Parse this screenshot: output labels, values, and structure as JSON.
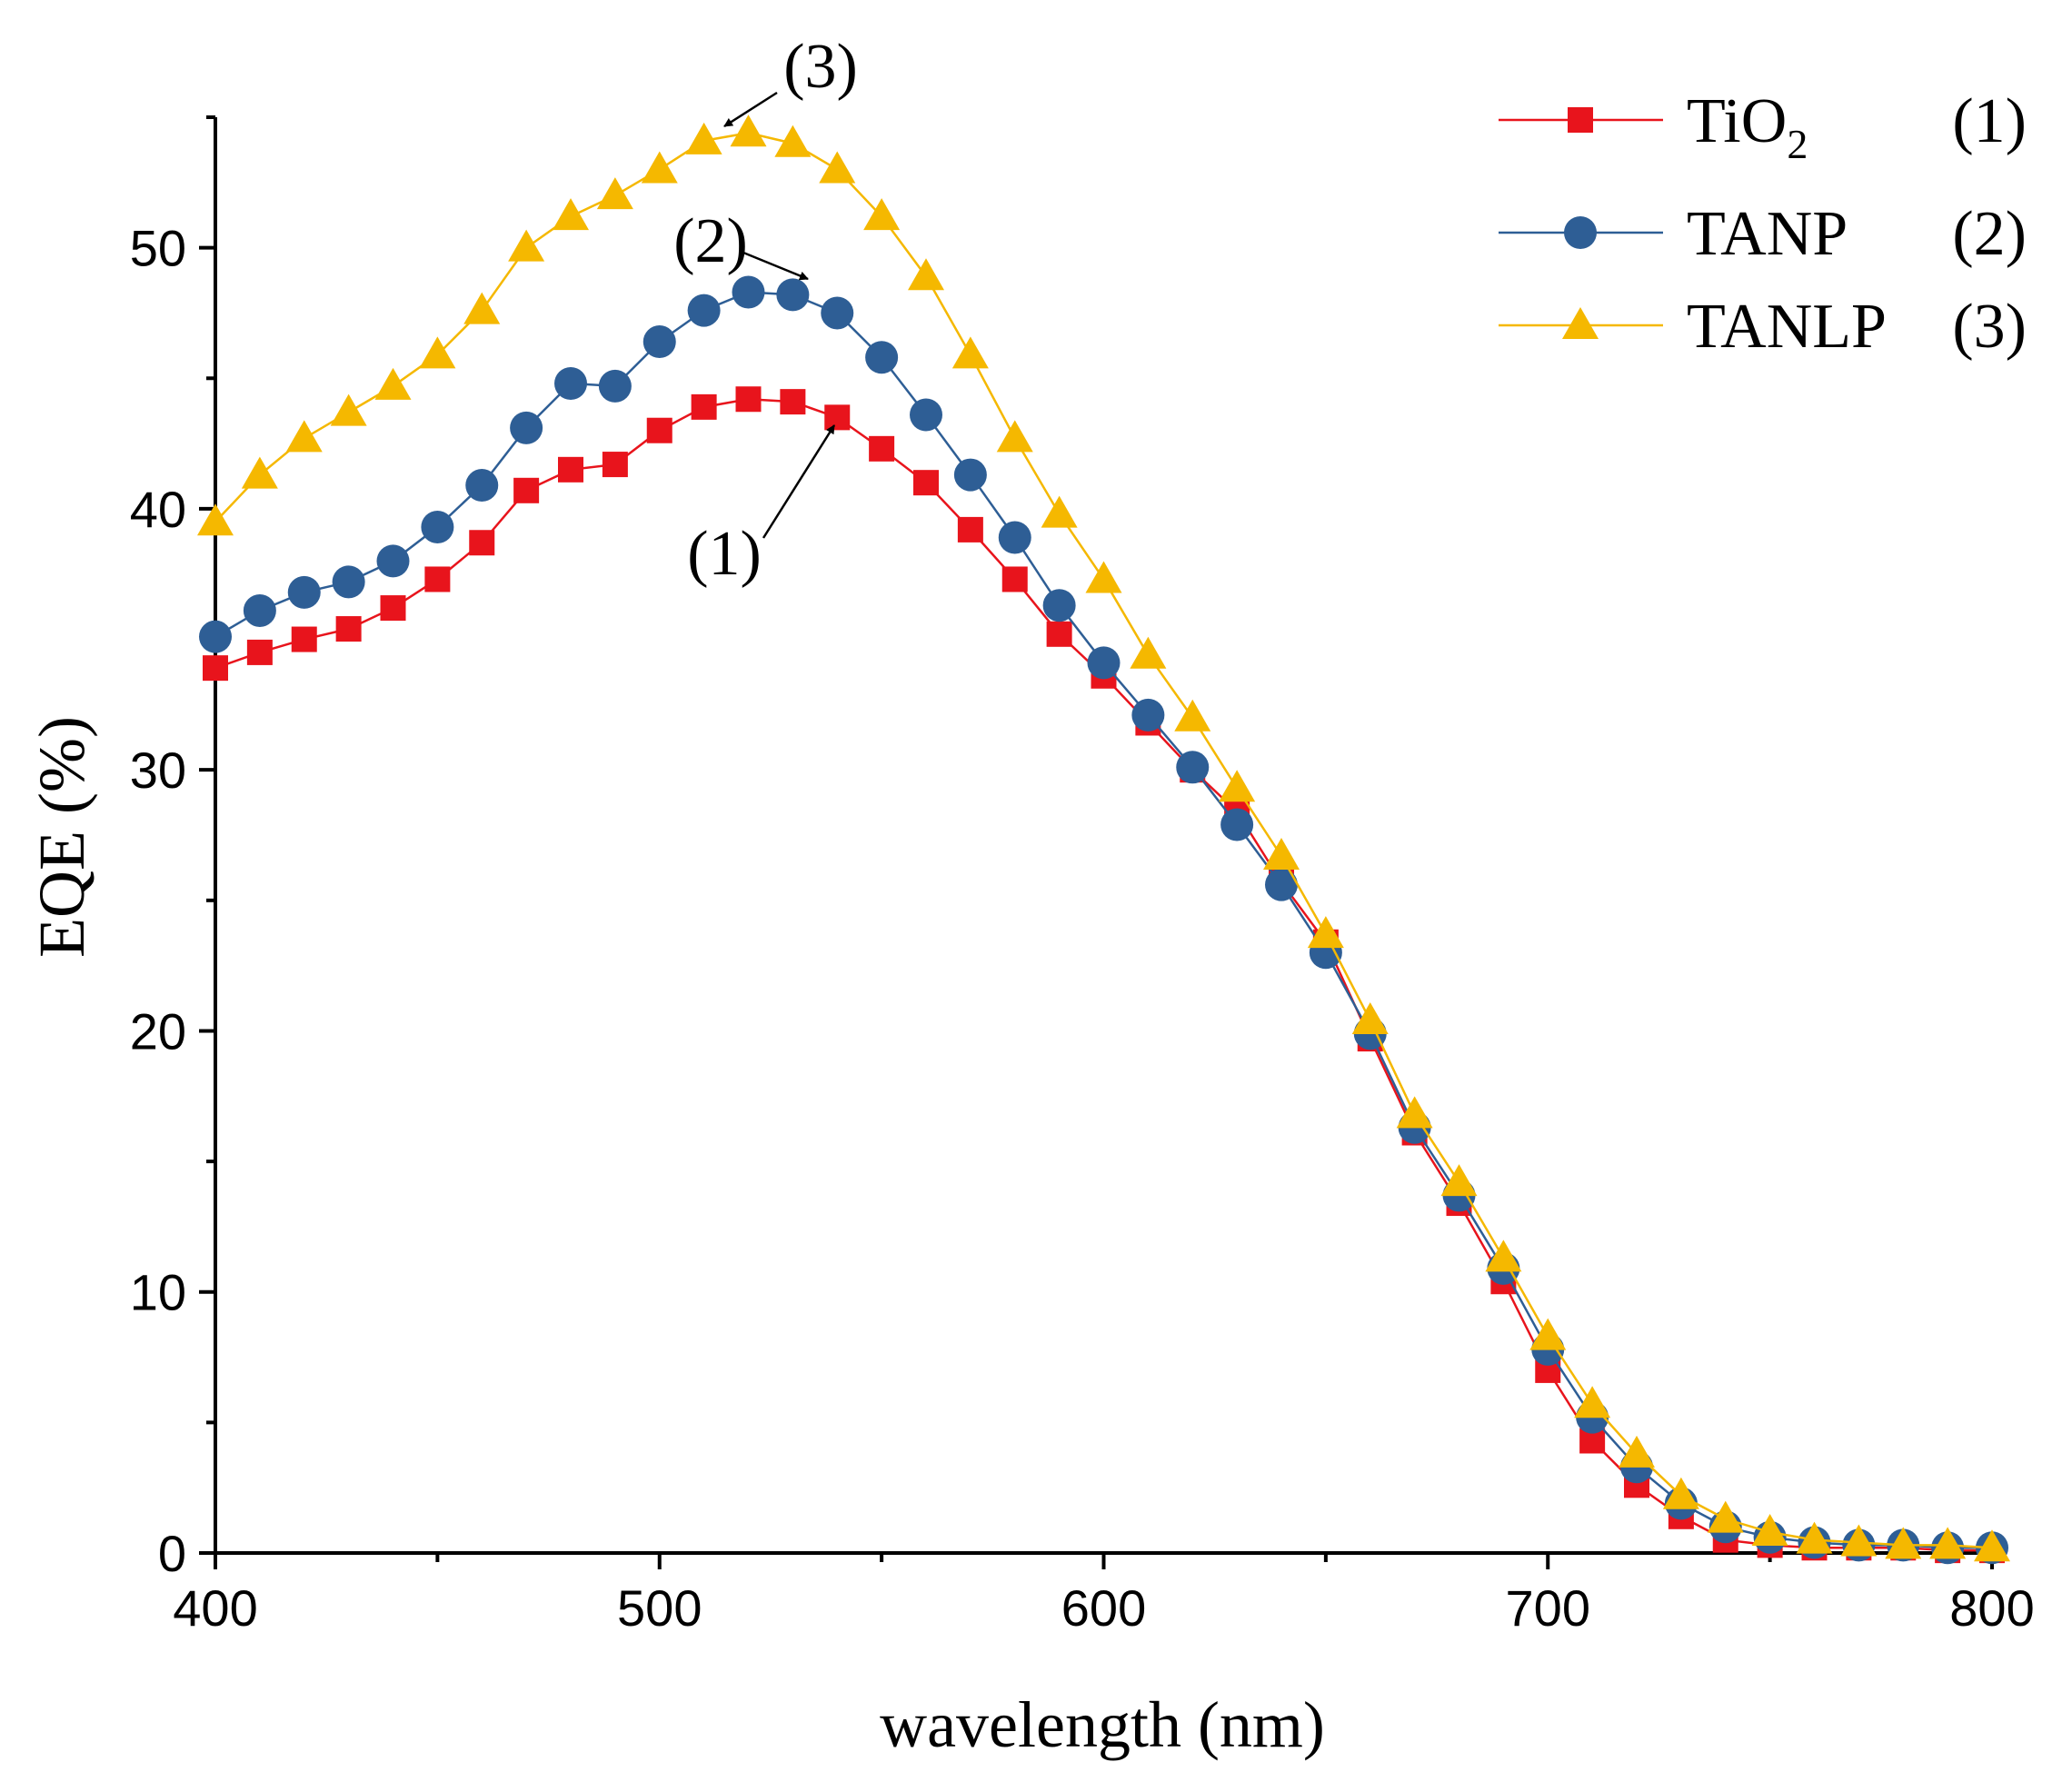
{
  "chart_data": {
    "type": "line",
    "title": "",
    "xlabel": "wavelength (nm)",
    "ylabel": "EQE (%)",
    "xlim": [
      400,
      800
    ],
    "ylim": [
      0,
      55
    ],
    "xticks": [
      400,
      500,
      600,
      700,
      800
    ],
    "yticks": [
      0,
      10,
      20,
      30,
      40,
      50
    ],
    "grid": false,
    "legend_position": "top-right",
    "x": [
      400,
      410,
      420,
      430,
      440,
      450,
      460,
      470,
      480,
      490,
      500,
      510,
      520,
      530,
      540,
      550,
      560,
      570,
      580,
      590,
      600,
      610,
      620,
      630,
      640,
      650,
      660,
      670,
      680,
      690,
      700,
      710,
      720,
      730,
      740,
      750,
      760,
      770,
      780,
      790,
      800
    ],
    "series": [
      {
        "name": "TiO2",
        "name_main": "TiO",
        "name_sub": "2",
        "tag": "(1)",
        "color": "#e8141c",
        "marker": "square",
        "values": [
          33.9,
          34.5,
          35.0,
          35.4,
          36.2,
          37.3,
          38.7,
          40.7,
          41.5,
          41.7,
          43.0,
          43.9,
          44.2,
          44.1,
          43.5,
          42.3,
          41.0,
          39.2,
          37.3,
          35.2,
          33.6,
          31.8,
          30.0,
          28.4,
          25.7,
          23.4,
          19.7,
          16.1,
          13.4,
          10.4,
          7.0,
          4.3,
          2.6,
          1.4,
          0.5,
          0.3,
          0.2,
          0.2,
          0.2,
          0.1,
          0.1
        ]
      },
      {
        "name": "TANP",
        "name_main": "TANP",
        "name_sub": "",
        "tag": "(2)",
        "color": "#2e5e95",
        "marker": "circle",
        "values": [
          35.1,
          36.1,
          36.8,
          37.2,
          38.0,
          39.3,
          40.9,
          43.1,
          44.8,
          44.7,
          46.4,
          47.6,
          48.3,
          48.2,
          47.5,
          45.8,
          43.6,
          41.3,
          38.9,
          36.3,
          34.1,
          32.1,
          30.1,
          27.9,
          25.6,
          23.0,
          19.9,
          16.3,
          13.7,
          10.9,
          7.8,
          5.2,
          3.3,
          1.9,
          1.0,
          0.6,
          0.4,
          0.3,
          0.3,
          0.2,
          0.2
        ]
      },
      {
        "name": "TANLP",
        "name_main": "TANLP",
        "name_sub": "",
        "tag": "(3)",
        "color": "#f5b800",
        "marker": "triangle",
        "values": [
          39.5,
          41.3,
          42.7,
          43.7,
          44.7,
          45.9,
          47.6,
          50.0,
          51.2,
          52.0,
          53.0,
          54.1,
          54.4,
          54.0,
          53.0,
          51.2,
          48.9,
          45.9,
          42.7,
          39.8,
          37.3,
          34.4,
          32.0,
          29.3,
          26.7,
          23.7,
          20.4,
          16.8,
          14.2,
          11.3,
          8.3,
          5.7,
          3.8,
          2.2,
          1.3,
          0.8,
          0.5,
          0.4,
          0.3,
          0.3,
          0.2
        ]
      }
    ],
    "annotations": [
      {
        "text": "(1)",
        "points_to": {
          "x": 540,
          "y": 43.5
        }
      },
      {
        "text": "(2)",
        "points_to": {
          "x": 533,
          "y": 48.5
        }
      },
      {
        "text": "(3)",
        "points_to": {
          "x": 515,
          "y": 54.6
        }
      }
    ]
  }
}
